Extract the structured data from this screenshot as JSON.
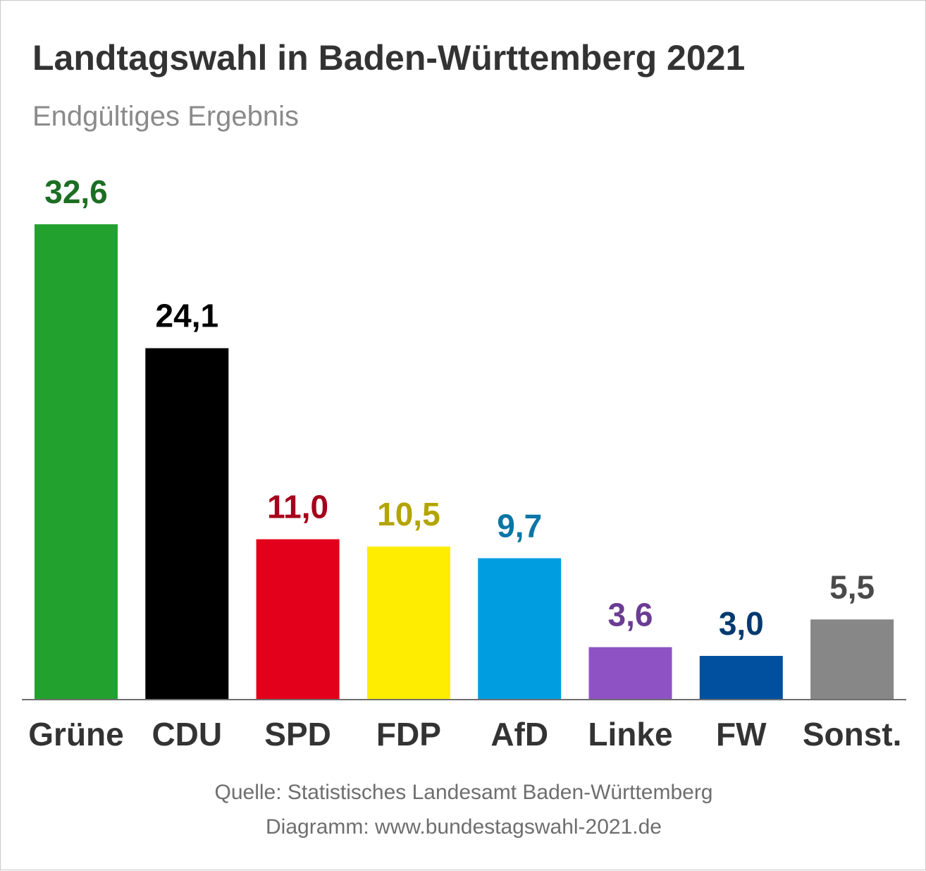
{
  "title": "Landtagswahl in Baden-Württemberg 2021",
  "subtitle": "Endgültiges Ergebnis",
  "footer": {
    "source": "Quelle: Statistisches Landesamt Baden-Württemberg",
    "credit": "Diagramm: www.bundestagswahl-2021.de"
  },
  "chart_data": {
    "type": "bar",
    "title": "Landtagswahl in Baden-Württemberg 2021",
    "subtitle": "Endgültiges Ergebnis",
    "categories": [
      "Grüne",
      "CDU",
      "SPD",
      "FDP",
      "AfD",
      "Linke",
      "FW",
      "Sonst."
    ],
    "values": [
      32.6,
      24.1,
      11.0,
      10.5,
      9.7,
      3.6,
      3.0,
      5.5
    ],
    "value_labels": [
      "32,6",
      "24,1",
      "11,0",
      "10,5",
      "9,7",
      "3,6",
      "3,0",
      "5,5"
    ],
    "bar_colors": [
      "#22a12f",
      "#000000",
      "#e2001a",
      "#ffed00",
      "#009ee0",
      "#8f52c4",
      "#00509f",
      "#878787"
    ],
    "label_colors": [
      "#1c6e23",
      "#000000",
      "#a5001c",
      "#b3a500",
      "#0a76a5",
      "#6b3c93",
      "#003a70",
      "#4a4a4a"
    ],
    "xlabel": "",
    "ylabel": "",
    "grid": false,
    "legend": "none"
  }
}
